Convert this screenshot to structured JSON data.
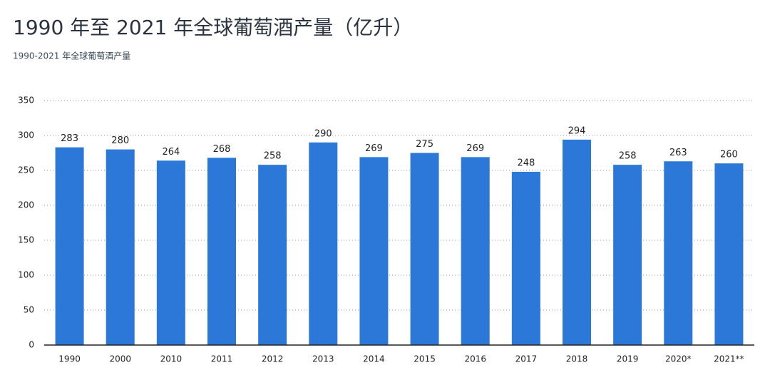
{
  "chart_data": {
    "type": "bar",
    "title": "1990 年至 2021 年全球葡萄酒产量（亿升）",
    "subtitle": "1990-2021 年全球葡萄酒产量",
    "categories": [
      "1990",
      "2000",
      "2010",
      "2011",
      "2012",
      "2013",
      "2014",
      "2015",
      "2016",
      "2017",
      "2018",
      "2019",
      "2020*",
      "2021**"
    ],
    "values": [
      283,
      280,
      264,
      268,
      258,
      290,
      269,
      275,
      269,
      248,
      294,
      258,
      263,
      260
    ],
    "color": "#2b78d8",
    "ylim": [
      0,
      350
    ],
    "yticks": [
      0,
      50,
      100,
      150,
      200,
      250,
      300,
      350
    ],
    "grid": true
  }
}
